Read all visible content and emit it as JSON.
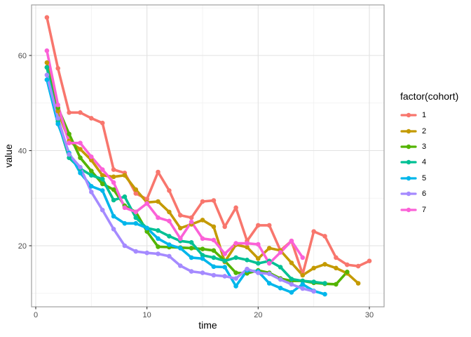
{
  "chart_data": {
    "type": "line",
    "title": "",
    "xlabel": "time",
    "ylabel": "value",
    "legend_title": "factor(cohort)",
    "legend_position": "right",
    "grid": true,
    "xlim": [
      -0.4,
      31.3
    ],
    "ylim": [
      7.2,
      70.6
    ],
    "x_ticks": [
      0,
      10,
      20,
      30
    ],
    "x_tick_labels": [
      "0",
      "10",
      "20",
      "30"
    ],
    "x_minor_ticks": [
      5,
      15,
      25
    ],
    "y_ticks": [
      20,
      40,
      60
    ],
    "y_tick_labels": [
      "20",
      "40",
      "60"
    ],
    "y_minor_ticks": [
      10,
      30,
      50,
      70
    ],
    "colors": {
      "grid_major": "#e2e2e2",
      "grid_minor": "#f0f0f0",
      "panel_border": "#a0a0a0",
      "tick_mark": "#333333",
      "tick_label": "#4d4d4d"
    },
    "series": [
      {
        "name": "1",
        "color": "#F8766D",
        "x_start": 1,
        "values": [
          68,
          57.3,
          48,
          48,
          46.8,
          45.8,
          36,
          35.3,
          31,
          29.8,
          35.5,
          31.6,
          26.4,
          25.9,
          29.3,
          29.5,
          24,
          28,
          21,
          24.3,
          24.3,
          19,
          21,
          14,
          23,
          22,
          17.5,
          16,
          15.7,
          16.8
        ]
      },
      {
        "name": "2",
        "color": "#C49A00",
        "x_start": 1,
        "values": [
          58.5,
          48.3,
          42,
          40.3,
          38,
          34.8,
          34.5,
          34.8,
          31.8,
          29.1,
          29.3,
          27.1,
          23.7,
          24.5,
          25.4,
          24,
          16.6,
          20.2,
          19.7,
          17.3,
          19.5,
          19,
          16.4,
          13.8,
          15.3,
          16.1,
          15.3,
          14.2,
          12.1
        ]
      },
      {
        "name": "3",
        "color": "#53B400",
        "x_start": 1,
        "values": [
          57.5,
          49,
          43.5,
          38.5,
          35.7,
          33,
          31.8,
          28.4,
          27.1,
          23,
          19.8,
          19.7,
          19.6,
          19.5,
          19.3,
          19,
          16.8,
          14.3,
          14.2,
          14.8,
          14.3,
          13.1,
          12.6,
          12.6,
          12.2,
          12,
          11.9,
          14.5
        ]
      },
      {
        "name": "4",
        "color": "#00C094",
        "x_start": 1,
        "values": [
          57.5,
          46.1,
          38.5,
          36.2,
          34.8,
          34,
          29.6,
          30.3,
          25.9,
          23.7,
          23.2,
          22,
          21,
          20.7,
          18,
          17.5,
          16.8,
          17.5,
          17,
          16.3,
          16.8,
          15.5,
          13,
          12.6,
          12.4,
          12.1
        ]
      },
      {
        "name": "5",
        "color": "#00B6EB",
        "x_start": 1,
        "values": [
          54.9,
          45.6,
          39.5,
          35.3,
          32.5,
          31.6,
          26.2,
          24.7,
          24.7,
          23.7,
          21.5,
          20.2,
          19.5,
          17.5,
          17.3,
          15.6,
          15.5,
          11.5,
          14.8,
          14.6,
          12.1,
          11.1,
          10.2,
          11.9,
          10.5,
          9.8
        ]
      },
      {
        "name": "6",
        "color": "#A58AFF",
        "x_start": 1,
        "values": [
          55.9,
          46.8,
          39.2,
          36.5,
          31.3,
          27.5,
          23.5,
          20,
          18.8,
          18.5,
          18.3,
          17.8,
          15.8,
          14.6,
          14.3,
          13.8,
          13.6,
          13.1,
          15.1,
          14.3,
          14.1,
          12.9,
          11.9,
          11,
          10.4
        ]
      },
      {
        "name": "7",
        "color": "#FB61D7",
        "x_start": 1,
        "values": [
          61,
          49.6,
          41.6,
          41.6,
          38.7,
          36,
          33.3,
          28,
          27.1,
          28.9,
          25.9,
          25.2,
          21.5,
          25,
          21.5,
          21.2,
          18.3,
          20.5,
          20.5,
          20.3,
          16.3,
          18.6,
          21,
          17.5
        ]
      }
    ]
  }
}
